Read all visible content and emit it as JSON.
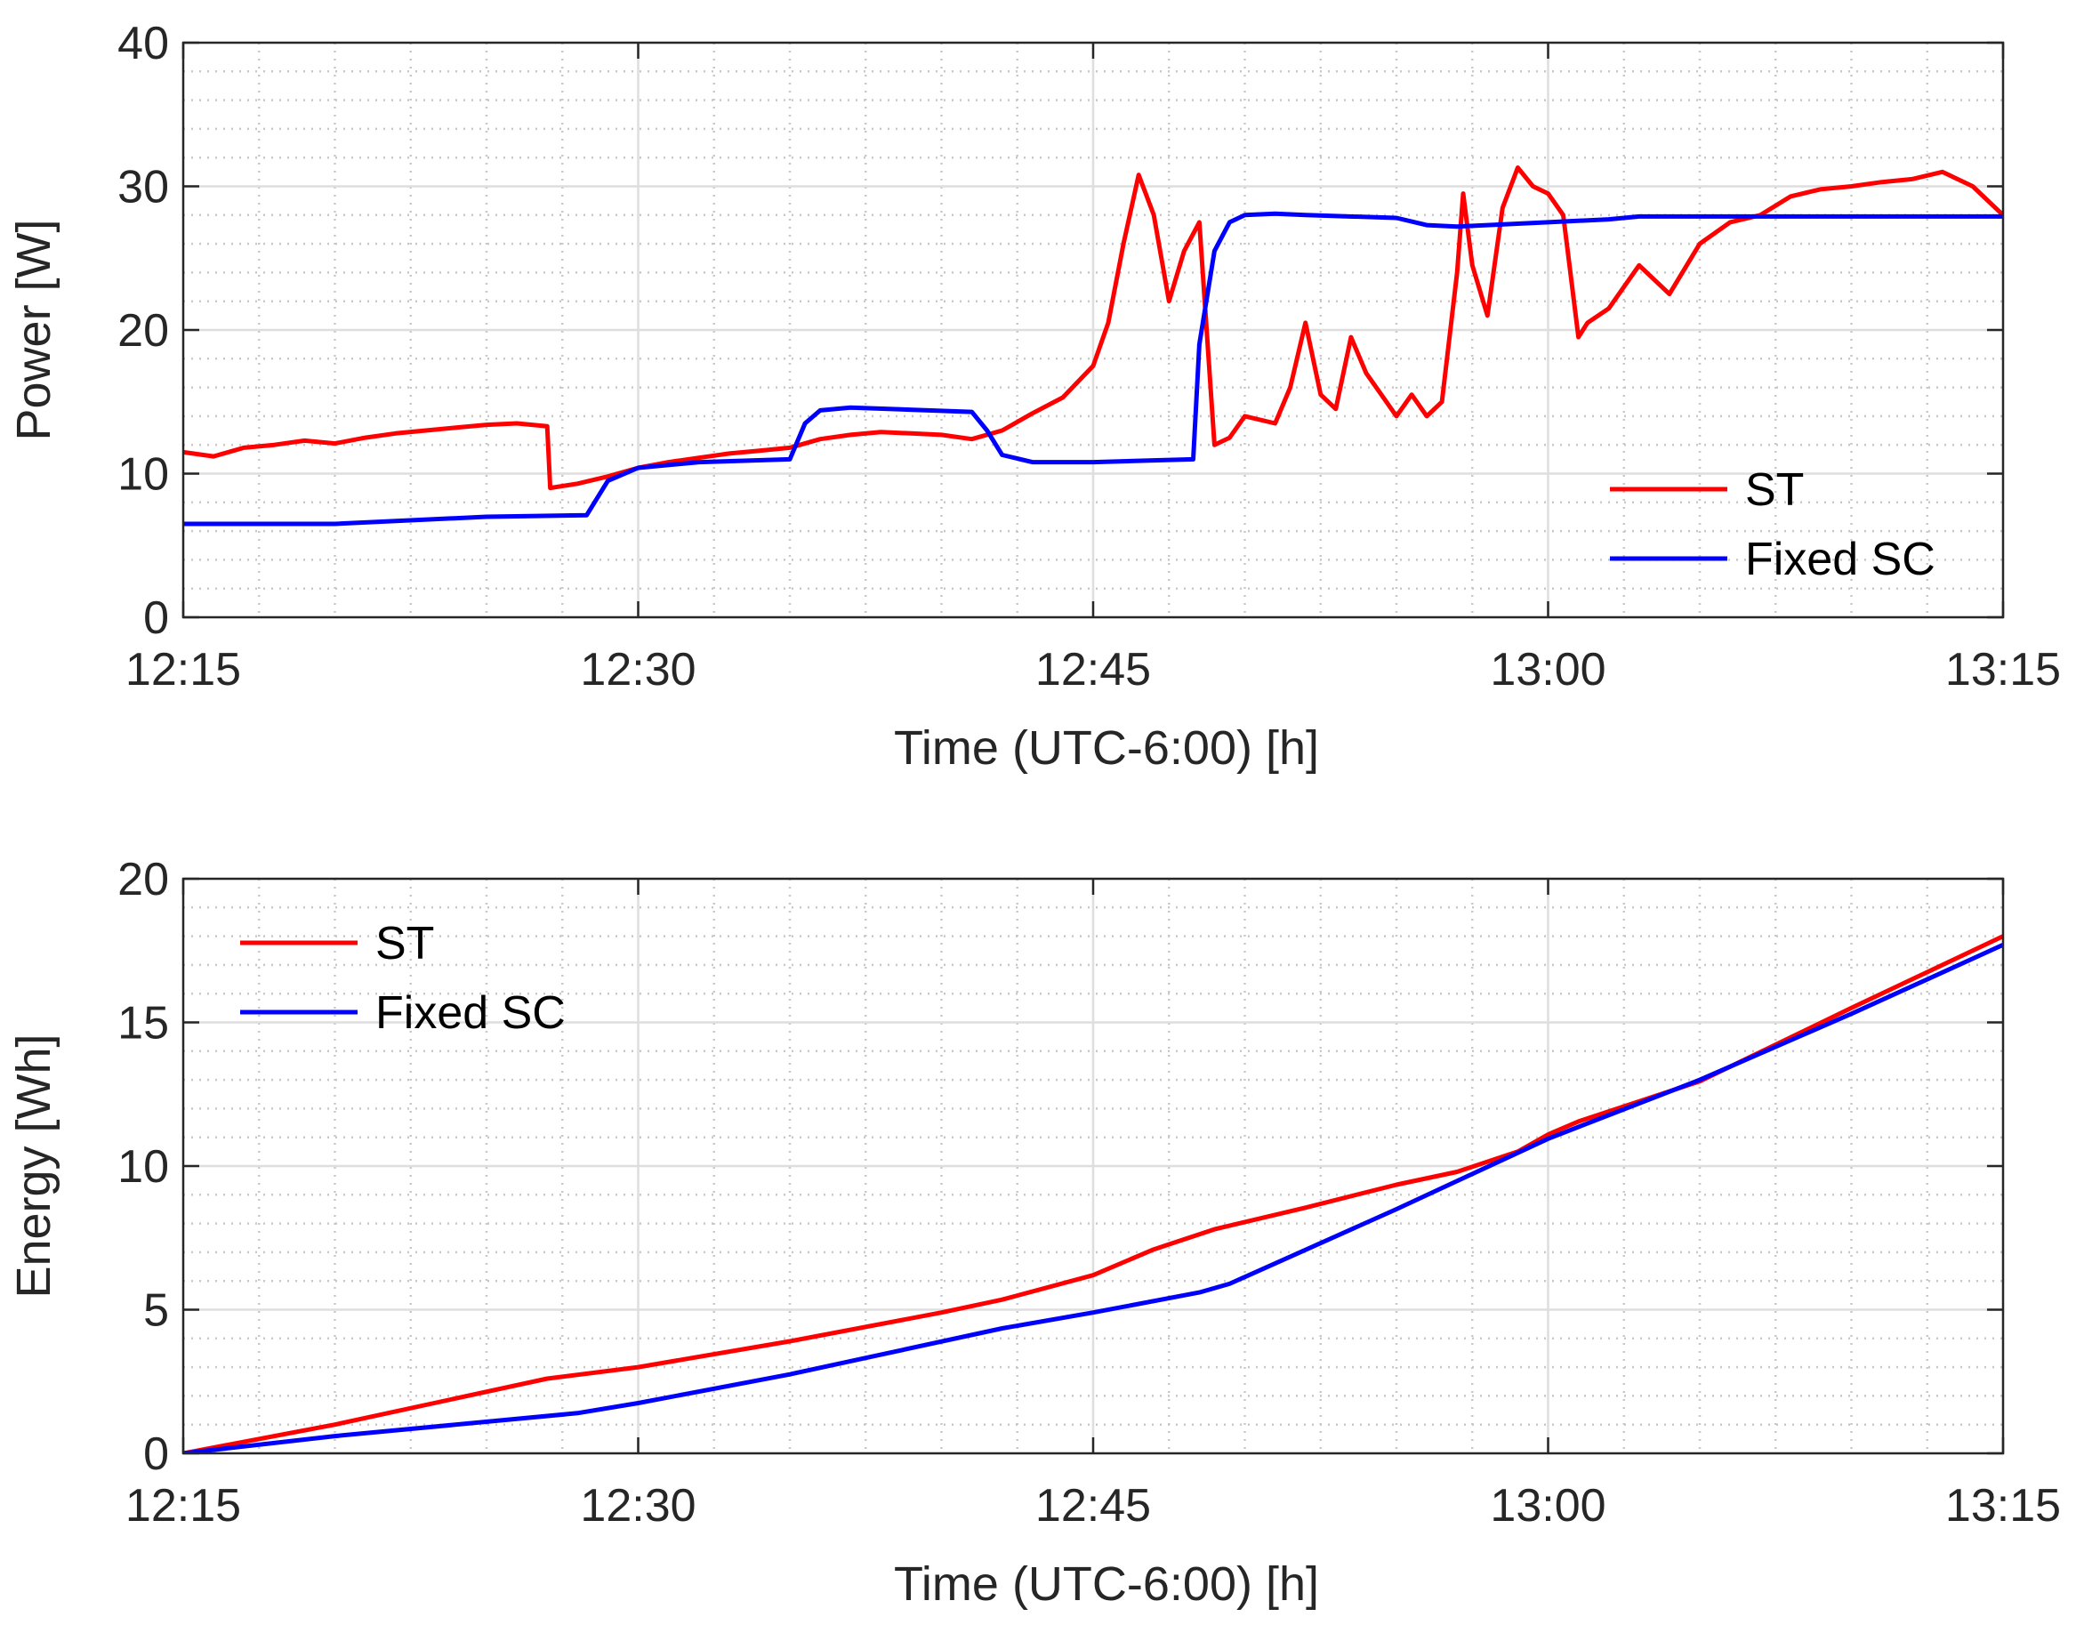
{
  "chart_data": [
    {
      "type": "line",
      "xlabel": "Time (UTC-6:00) [h]",
      "ylabel": "Power [W]",
      "xlim": [
        "12:15",
        "13:15"
      ],
      "ylim": [
        0,
        40
      ],
      "xticks": [
        "12:15",
        "12:30",
        "12:45",
        "13:00",
        "13:15"
      ],
      "yticks": [
        "0",
        "10",
        "20",
        "30",
        "40"
      ],
      "grid": true,
      "minor_grid": true,
      "legend_position": "bottom-right",
      "series": [
        {
          "name": "ST",
          "color": "#ff0000",
          "x": [
            "12:15",
            "12:16",
            "12:17",
            "12:18",
            "12:19",
            "12:20",
            "12:21",
            "12:22",
            "12:23",
            "12:24",
            "12:25",
            "12:26",
            "12:27",
            "12:27.1",
            "12:28",
            "12:29",
            "12:30",
            "12:31",
            "12:32",
            "12:33",
            "12:34",
            "12:35",
            "12:36",
            "12:37",
            "12:38",
            "12:39",
            "12:40",
            "12:41",
            "12:42",
            "12:43",
            "12:44",
            "12:45",
            "12:45.5",
            "12:46",
            "12:46.5",
            "12:47",
            "12:47.5",
            "12:48",
            "12:48.5",
            "12:49",
            "12:49.5",
            "12:50",
            "12:51",
            "12:51.5",
            "12:52",
            "12:52.5",
            "12:53",
            "12:53.5",
            "12:54",
            "12:54.5",
            "12:55",
            "12:55.5",
            "12:56",
            "12:56.5",
            "12:57",
            "12:57.2",
            "12:57.5",
            "12:58",
            "12:58.5",
            "12:59",
            "12:59.5",
            "13:00",
            "13:00.5",
            "13:01",
            "13:01.3",
            "13:02",
            "13:03",
            "13:04",
            "13:05",
            "13:06",
            "13:07",
            "13:08",
            "13:09",
            "13:10",
            "13:11",
            "13:12",
            "13:13",
            "13:14",
            "13:15"
          ],
          "y": [
            11.5,
            11.2,
            11.8,
            12.0,
            12.3,
            12.1,
            12.5,
            12.8,
            13.0,
            13.2,
            13.4,
            13.5,
            13.3,
            9.0,
            9.3,
            9.8,
            10.4,
            10.8,
            11.1,
            11.4,
            11.6,
            11.8,
            12.4,
            12.7,
            12.9,
            12.8,
            12.7,
            12.4,
            13.0,
            14.2,
            15.3,
            17.5,
            20.5,
            26.0,
            30.8,
            28.0,
            22.0,
            25.5,
            27.5,
            12.0,
            12.5,
            14.0,
            13.5,
            16.0,
            20.5,
            15.5,
            14.5,
            19.5,
            17.0,
            15.5,
            14.0,
            15.5,
            14.0,
            15.0,
            24.0,
            29.5,
            24.5,
            21.0,
            28.5,
            31.3,
            30.0,
            29.5,
            28.0,
            19.5,
            20.5,
            21.5,
            24.5,
            22.5,
            26.0,
            27.5,
            28.0,
            29.3,
            29.8,
            30.0,
            30.3,
            30.5,
            31.0,
            30.0,
            28.0
          ]
        },
        {
          "name": "Fixed SC",
          "color": "#0000ff",
          "x": [
            "12:15",
            "12:20",
            "12:25",
            "12:28.3",
            "12:29",
            "12:30",
            "12:32",
            "12:35",
            "12:35.5",
            "12:36",
            "12:37",
            "12:41",
            "12:41.5",
            "12:42",
            "12:43",
            "12:45",
            "12:48.3",
            "12:48.5",
            "12:49",
            "12:49.5",
            "12:50",
            "12:51",
            "12:52",
            "12:55",
            "12:56",
            "12:57",
            "13:00",
            "13:02",
            "13:03",
            "13:10",
            "13:15"
          ],
          "y": [
            6.5,
            6.5,
            7.0,
            7.1,
            9.5,
            10.4,
            10.8,
            11.0,
            13.5,
            14.4,
            14.6,
            14.3,
            13.0,
            11.3,
            10.8,
            10.8,
            11.0,
            19.0,
            25.5,
            27.5,
            28.0,
            28.1,
            28.0,
            27.8,
            27.3,
            27.2,
            27.5,
            27.7,
            27.9,
            27.9,
            27.9
          ]
        }
      ]
    },
    {
      "type": "line",
      "xlabel": "Time (UTC-6:00) [h]",
      "ylabel": "Energy [Wh]",
      "xlim": [
        "12:15",
        "13:15"
      ],
      "ylim": [
        0,
        20
      ],
      "xticks": [
        "12:15",
        "12:30",
        "12:45",
        "13:00",
        "13:15"
      ],
      "yticks": [
        "0",
        "5",
        "10",
        "15",
        "20"
      ],
      "grid": true,
      "minor_grid": true,
      "legend_position": "top-left",
      "series": [
        {
          "name": "ST",
          "color": "#ff0000",
          "x": [
            "12:15",
            "12:20",
            "12:27",
            "12:30",
            "12:35",
            "12:40",
            "12:42",
            "12:45",
            "12:47",
            "12:49",
            "12:52",
            "12:55",
            "12:57",
            "12:59",
            "13:00",
            "13:01",
            "13:05",
            "13:10",
            "13:15"
          ],
          "y": [
            0,
            1.0,
            2.6,
            3.0,
            3.9,
            4.9,
            5.35,
            6.2,
            7.1,
            7.8,
            8.55,
            9.35,
            9.8,
            10.5,
            11.1,
            11.55,
            12.95,
            15.5,
            18.0
          ]
        },
        {
          "name": "Fixed SC",
          "color": "#0000ff",
          "x": [
            "12:15",
            "12:20",
            "12:28",
            "12:30",
            "12:35",
            "12:42",
            "12:45",
            "12:48.5",
            "12:49.5",
            "12:55",
            "13:00",
            "13:05",
            "13:10",
            "13:15"
          ],
          "y": [
            0,
            0.6,
            1.4,
            1.75,
            2.75,
            4.35,
            4.9,
            5.6,
            5.9,
            8.5,
            10.95,
            13.0,
            15.3,
            17.7
          ]
        }
      ]
    }
  ]
}
